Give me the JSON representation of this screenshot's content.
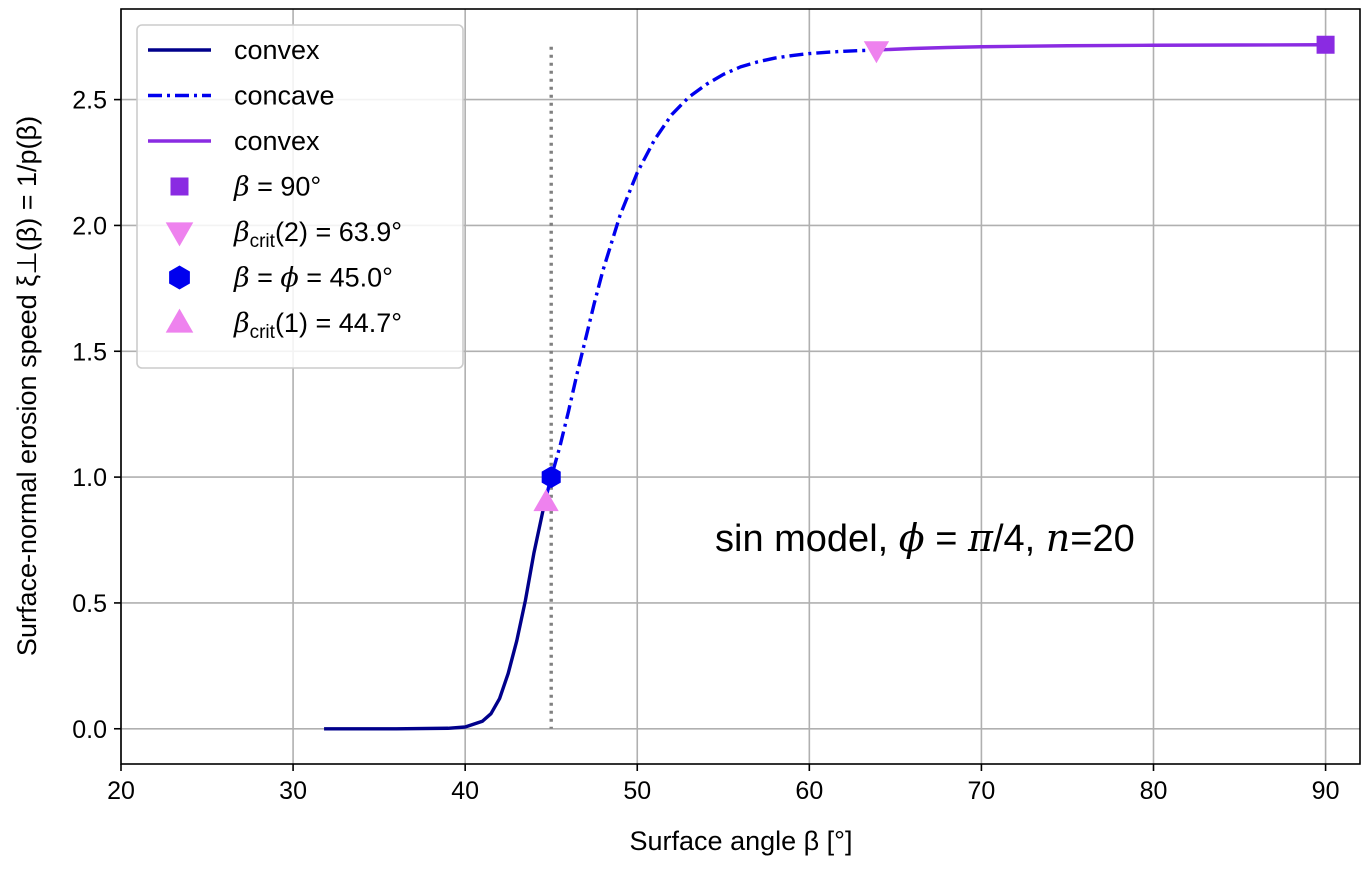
{
  "chart_data": {
    "type": "line",
    "xlabel": "Surface angle  β  [°]",
    "ylabel": "Surface-normal erosion speed  ξ⊥(β) = 1/p(β)",
    "xlim": [
      20,
      92
    ],
    "ylim": [
      -0.14,
      2.86
    ],
    "xticks": [
      20,
      30,
      40,
      50,
      60,
      70,
      80,
      90
    ],
    "yticks": [
      0.0,
      0.5,
      1.0,
      1.5,
      2.0,
      2.5
    ],
    "xtick_labels": [
      "20",
      "30",
      "40",
      "50",
      "60",
      "70",
      "80",
      "90"
    ],
    "ytick_labels": [
      "0.0",
      "0.5",
      "1.0",
      "1.5",
      "2.0",
      "2.5"
    ],
    "grid": true,
    "legend_position": "top-left",
    "annotation": {
      "text_prefix": "sin model, ",
      "phi": "ϕ",
      "eq1": " = ",
      "pi": "π",
      "rest": "/4, ",
      "n": "n",
      "eq2": "=20"
    },
    "vline": {
      "x": 45.0,
      "y_range": [
        0.0,
        2.71
      ],
      "style": "dotted",
      "color": "#808080"
    },
    "series": [
      {
        "name": "convex",
        "style": "solid",
        "color": "#00008b",
        "x": [
          31.8,
          36,
          39,
          40,
          41,
          41.5,
          42,
          42.5,
          43,
          43.5,
          44,
          44.5,
          44.7
        ],
        "y": [
          0.0,
          0.0,
          0.002,
          0.007,
          0.03,
          0.06,
          0.12,
          0.22,
          0.35,
          0.51,
          0.7,
          0.86,
          0.92
        ]
      },
      {
        "name": "concave",
        "style": "dashdot",
        "color": "#0000ee",
        "x": [
          44.7,
          45,
          45.5,
          46,
          46.5,
          47,
          47.5,
          48,
          49,
          50,
          51,
          52,
          53,
          54,
          55,
          56,
          57,
          58,
          59,
          60,
          61,
          62,
          63,
          63.9
        ],
        "y": [
          0.92,
          1.0,
          1.12,
          1.26,
          1.41,
          1.55,
          1.69,
          1.82,
          2.04,
          2.21,
          2.34,
          2.44,
          2.51,
          2.56,
          2.6,
          2.63,
          2.65,
          2.665,
          2.675,
          2.683,
          2.688,
          2.692,
          2.695,
          2.697
        ]
      },
      {
        "name": "convex",
        "style": "solid",
        "color": "#8a2be2",
        "x": [
          63.9,
          66,
          68,
          70,
          75,
          80,
          85,
          90
        ],
        "y": [
          2.697,
          2.703,
          2.707,
          2.71,
          2.714,
          2.716,
          2.717,
          2.718
        ]
      }
    ],
    "points": [
      {
        "name_parts": [
          "β",
          " = 90°"
        ],
        "marker": "square",
        "color": "#8a2be2",
        "x": 90.0,
        "y": 2.718
      },
      {
        "name_parts": [
          "β",
          "crit",
          "(2) = 63.9°"
        ],
        "marker": "triangle-down",
        "color": "#ee82ee",
        "x": 63.9,
        "y": 2.697
      },
      {
        "name_parts": [
          "β",
          " = ",
          "ϕ",
          " = 45.0°"
        ],
        "marker": "hexagon",
        "color": "#0000ee",
        "x": 45.0,
        "y": 1.0
      },
      {
        "name_parts": [
          "β",
          "crit",
          "(1) = 44.7°"
        ],
        "marker": "triangle-up",
        "color": "#ee82ee",
        "x": 44.7,
        "y": 0.9
      }
    ]
  }
}
